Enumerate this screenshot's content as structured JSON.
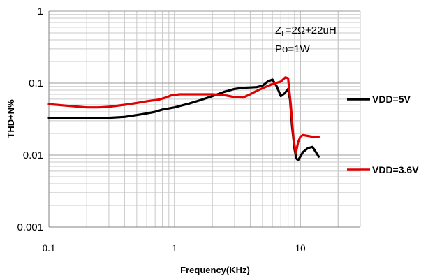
{
  "chart_data": {
    "type": "line",
    "x_scale": "log",
    "y_scale": "log",
    "xlim": [
      0.1,
      30
    ],
    "ylim": [
      0.001,
      1
    ],
    "grid": true,
    "xlabel": "Frequency(KHz)",
    "ylabel": "THD+N%",
    "x_ticks": [
      "0.1",
      "1",
      "10"
    ],
    "y_ticks": [
      "0.001",
      "0.01",
      "0.1",
      "1"
    ],
    "legend_position": "right",
    "annotations": {
      "line1_prefix": "Z",
      "line1_sub": "L",
      "line1_rest": "=2Ω+22uH",
      "line2": "Po=1W"
    },
    "series": [
      {
        "name": "VDD=5V",
        "color": "#000000",
        "points": [
          [
            0.1,
            0.033
          ],
          [
            0.2,
            0.033
          ],
          [
            0.3,
            0.033
          ],
          [
            0.4,
            0.034
          ],
          [
            0.5,
            0.036
          ],
          [
            0.6,
            0.038
          ],
          [
            0.7,
            0.04
          ],
          [
            0.8,
            0.043
          ],
          [
            1.0,
            0.046
          ],
          [
            1.3,
            0.052
          ],
          [
            1.6,
            0.058
          ],
          [
            2.0,
            0.066
          ],
          [
            2.5,
            0.076
          ],
          [
            3.0,
            0.083
          ],
          [
            3.5,
            0.086
          ],
          [
            4.0,
            0.087
          ],
          [
            4.5,
            0.088
          ],
          [
            5.0,
            0.092
          ],
          [
            5.5,
            0.105
          ],
          [
            6.0,
            0.112
          ],
          [
            6.5,
            0.09
          ],
          [
            7.0,
            0.066
          ],
          [
            7.5,
            0.072
          ],
          [
            8.0,
            0.083
          ],
          [
            8.3,
            0.058
          ],
          [
            8.6,
            0.025
          ],
          [
            9.0,
            0.012
          ],
          [
            9.3,
            0.009
          ],
          [
            9.6,
            0.0085
          ],
          [
            10.0,
            0.0095
          ],
          [
            10.5,
            0.011
          ],
          [
            11.5,
            0.0125
          ],
          [
            12.5,
            0.013
          ],
          [
            13.3,
            0.011
          ],
          [
            14.0,
            0.0095
          ]
        ]
      },
      {
        "name": "VDD=3.6V",
        "color": "#e00000",
        "points": [
          [
            0.1,
            0.051
          ],
          [
            0.15,
            0.048
          ],
          [
            0.2,
            0.046
          ],
          [
            0.25,
            0.046
          ],
          [
            0.3,
            0.047
          ],
          [
            0.4,
            0.05
          ],
          [
            0.5,
            0.053
          ],
          [
            0.6,
            0.056
          ],
          [
            0.75,
            0.059
          ],
          [
            0.85,
            0.063
          ],
          [
            0.95,
            0.068
          ],
          [
            1.1,
            0.07
          ],
          [
            1.5,
            0.07
          ],
          [
            2.0,
            0.07
          ],
          [
            2.5,
            0.068
          ],
          [
            3.0,
            0.064
          ],
          [
            3.5,
            0.063
          ],
          [
            4.0,
            0.07
          ],
          [
            4.5,
            0.078
          ],
          [
            5.0,
            0.085
          ],
          [
            6.0,
            0.097
          ],
          [
            7.0,
            0.105
          ],
          [
            7.6,
            0.12
          ],
          [
            8.0,
            0.117
          ],
          [
            8.4,
            0.05
          ],
          [
            8.8,
            0.018
          ],
          [
            9.2,
            0.0105
          ],
          [
            9.6,
            0.015
          ],
          [
            10.0,
            0.018
          ],
          [
            10.5,
            0.019
          ],
          [
            11.5,
            0.0185
          ],
          [
            12.5,
            0.018
          ],
          [
            14.0,
            0.018
          ]
        ]
      }
    ]
  }
}
